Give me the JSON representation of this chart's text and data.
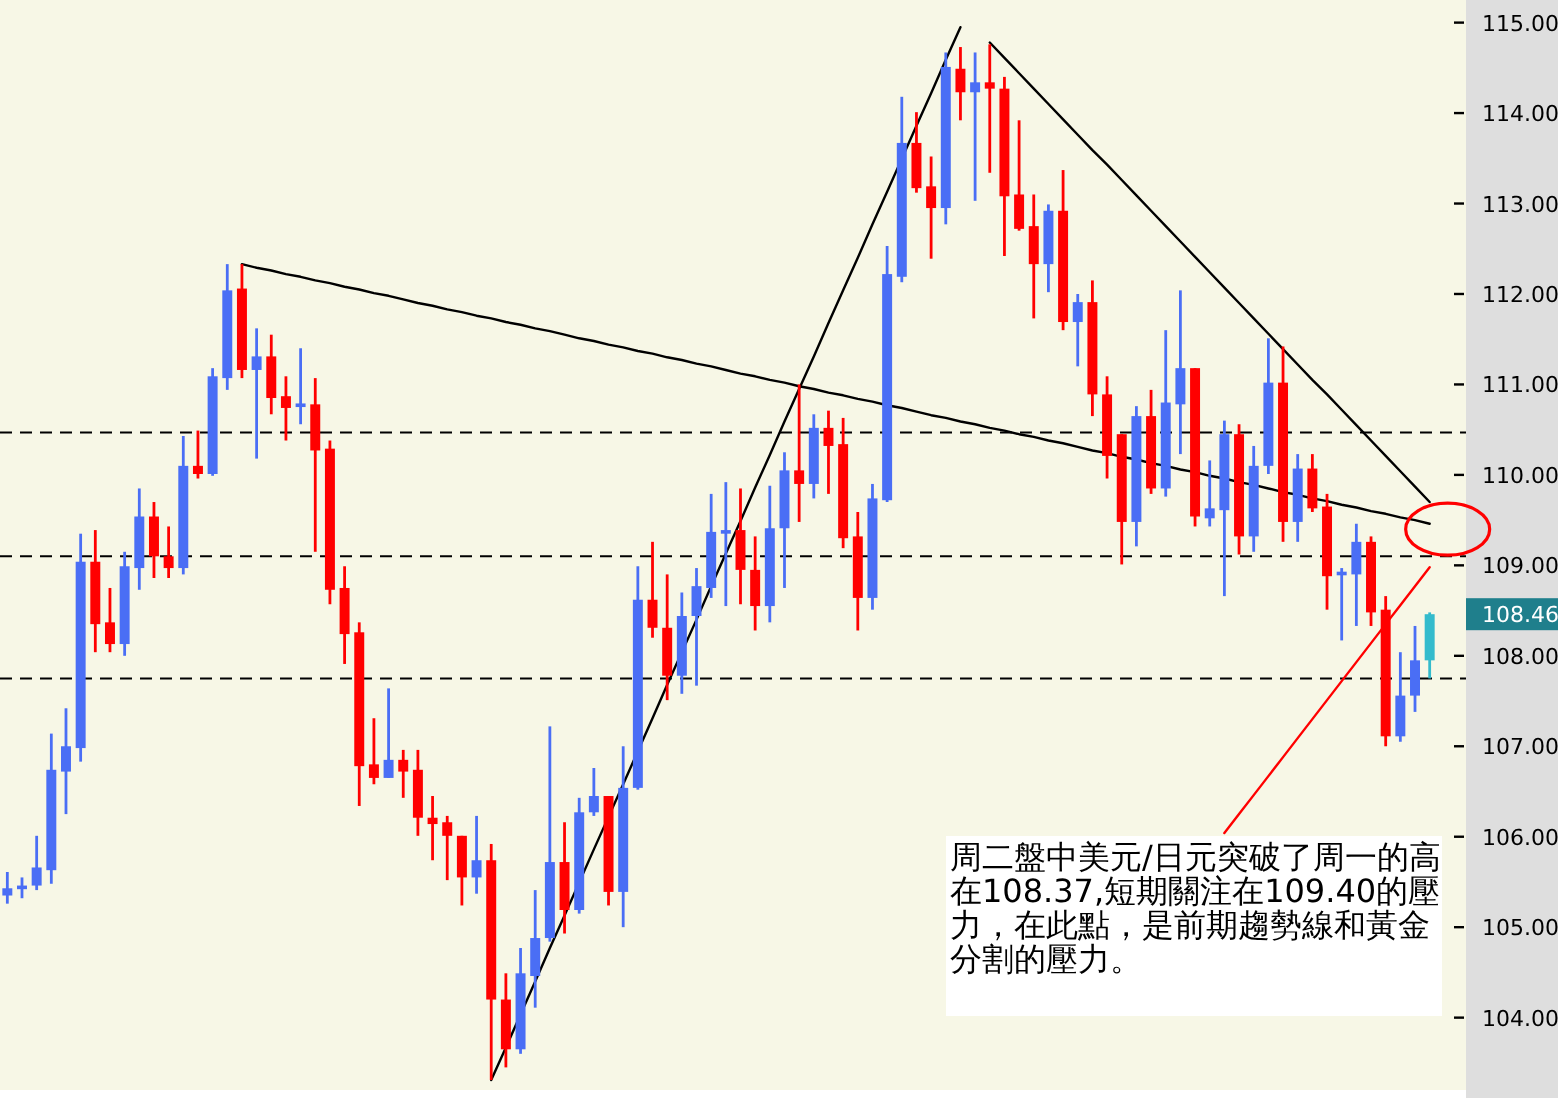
{
  "chart_data": {
    "type": "candlestick",
    "categories": [
      null,
      null,
      null,
      null,
      null,
      null,
      null,
      null,
      null,
      null,
      null,
      null,
      null,
      null,
      null,
      null,
      null,
      null,
      null,
      null,
      null,
      null,
      null,
      null,
      null,
      null,
      null,
      null,
      null,
      null,
      null,
      null,
      null,
      null,
      null,
      null,
      null,
      null,
      null,
      null,
      null,
      null,
      null,
      null,
      null,
      null,
      null,
      null,
      null,
      null,
      null,
      null,
      null,
      null,
      null,
      null,
      null,
      null,
      null,
      null,
      null,
      null,
      null,
      null,
      null,
      null,
      null,
      null,
      null,
      null,
      null,
      null,
      null,
      null,
      null,
      null,
      null,
      null,
      null,
      null,
      null,
      null,
      null,
      null,
      null,
      null,
      null,
      null,
      null,
      null,
      null,
      null,
      null,
      null,
      null,
      null,
      null,
      null
    ],
    "ohlc": [
      [
        105.35,
        105.61,
        105.26,
        105.43
      ],
      [
        105.42,
        105.55,
        105.32,
        105.46
      ],
      [
        105.46,
        106.01,
        105.41,
        105.66
      ],
      [
        105.63,
        107.14,
        105.48,
        106.74
      ],
      [
        106.72,
        107.42,
        106.25,
        107.0
      ],
      [
        106.98,
        109.35,
        106.83,
        109.04
      ],
      [
        109.04,
        109.39,
        108.04,
        108.35
      ],
      [
        108.37,
        108.75,
        108.04,
        108.13
      ],
      [
        108.13,
        109.15,
        108.0,
        108.99
      ],
      [
        108.97,
        109.85,
        108.73,
        109.54
      ],
      [
        109.54,
        109.7,
        108.86,
        109.1
      ],
      [
        109.1,
        109.43,
        108.86,
        108.97
      ],
      [
        108.97,
        110.43,
        108.9,
        110.1
      ],
      [
        110.1,
        110.49,
        109.96,
        110.01
      ],
      [
        110.01,
        111.18,
        109.99,
        111.09
      ],
      [
        111.07,
        112.33,
        110.94,
        112.04
      ],
      [
        112.06,
        112.33,
        111.07,
        111.16
      ],
      [
        111.16,
        111.62,
        110.18,
        111.31
      ],
      [
        111.31,
        111.55,
        110.67,
        110.85
      ],
      [
        110.87,
        111.09,
        110.38,
        110.74
      ],
      [
        110.75,
        111.4,
        110.56,
        110.79
      ],
      [
        110.78,
        111.07,
        109.15,
        110.27
      ],
      [
        110.29,
        110.38,
        108.57,
        108.73
      ],
      [
        108.75,
        108.99,
        107.91,
        108.24
      ],
      [
        108.26,
        108.37,
        106.34,
        106.78
      ],
      [
        106.8,
        107.31,
        106.58,
        106.65
      ],
      [
        106.65,
        107.64,
        106.65,
        106.85
      ],
      [
        106.85,
        106.96,
        106.43,
        106.72
      ],
      [
        106.74,
        106.96,
        106.01,
        106.21
      ],
      [
        106.21,
        106.45,
        105.74,
        106.14
      ],
      [
        106.16,
        106.23,
        105.52,
        106.01
      ],
      [
        106.01,
        106.01,
        105.24,
        105.55
      ],
      [
        105.55,
        106.23,
        105.37,
        105.74
      ],
      [
        105.74,
        105.92,
        103.31,
        104.2
      ],
      [
        104.2,
        104.49,
        103.45,
        103.65
      ],
      [
        103.65,
        104.77,
        103.6,
        104.49
      ],
      [
        104.46,
        105.41,
        104.11,
        104.88
      ],
      [
        104.88,
        107.22,
        104.84,
        105.72
      ],
      [
        105.72,
        106.16,
        104.93,
        105.19
      ],
      [
        105.19,
        106.43,
        105.15,
        106.27
      ],
      [
        106.27,
        106.76,
        106.23,
        106.45
      ],
      [
        106.45,
        106.45,
        105.24,
        105.39
      ],
      [
        105.39,
        107.0,
        105.0,
        106.54
      ],
      [
        106.54,
        108.99,
        106.52,
        108.62
      ],
      [
        108.62,
        109.26,
        108.2,
        108.31
      ],
      [
        108.31,
        108.9,
        107.51,
        107.78
      ],
      [
        107.78,
        108.7,
        107.58,
        108.44
      ],
      [
        108.44,
        108.97,
        107.67,
        108.77
      ],
      [
        108.75,
        109.79,
        108.64,
        109.37
      ],
      [
        109.35,
        109.92,
        108.55,
        109.39
      ],
      [
        109.39,
        109.85,
        108.57,
        108.95
      ],
      [
        108.95,
        109.32,
        108.28,
        108.55
      ],
      [
        108.55,
        109.88,
        108.37,
        109.41
      ],
      [
        109.41,
        110.25,
        108.75,
        110.05
      ],
      [
        110.05,
        111.0,
        109.48,
        109.9
      ],
      [
        109.9,
        110.67,
        109.74,
        110.52
      ],
      [
        110.52,
        110.71,
        109.79,
        110.32
      ],
      [
        110.34,
        110.63,
        109.19,
        109.3
      ],
      [
        109.32,
        109.59,
        108.28,
        108.64
      ],
      [
        108.64,
        109.9,
        108.51,
        109.74
      ],
      [
        109.72,
        112.53,
        109.7,
        112.22
      ],
      [
        112.19,
        114.18,
        112.13,
        113.67
      ],
      [
        113.67,
        114.01,
        113.12,
        113.17
      ],
      [
        113.19,
        113.52,
        112.39,
        112.95
      ],
      [
        112.95,
        114.67,
        112.77,
        114.51
      ],
      [
        114.49,
        114.73,
        113.92,
        114.23
      ],
      [
        114.23,
        114.67,
        113.03,
        114.34
      ],
      [
        114.34,
        114.76,
        113.34,
        114.27
      ],
      [
        114.27,
        114.4,
        112.42,
        113.08
      ],
      [
        113.1,
        113.92,
        112.7,
        112.72
      ],
      [
        112.75,
        113.1,
        111.73,
        112.33
      ],
      [
        112.33,
        112.99,
        112.02,
        112.92
      ],
      [
        112.92,
        113.37,
        111.6,
        111.69
      ],
      [
        111.69,
        112.0,
        111.2,
        111.91
      ],
      [
        111.91,
        112.15,
        110.65,
        110.89
      ],
      [
        110.89,
        111.09,
        109.96,
        110.21
      ],
      [
        110.45,
        110.45,
        109.01,
        109.48
      ],
      [
        109.48,
        110.76,
        109.21,
        110.65
      ],
      [
        110.65,
        110.94,
        109.79,
        109.85
      ],
      [
        109.85,
        111.6,
        109.76,
        110.8
      ],
      [
        110.78,
        112.04,
        110.23,
        111.18
      ],
      [
        111.18,
        111.18,
        109.43,
        109.54
      ],
      [
        109.52,
        110.16,
        109.43,
        109.63
      ],
      [
        109.61,
        110.6,
        108.66,
        110.45
      ],
      [
        110.45,
        110.56,
        109.12,
        109.32
      ],
      [
        109.32,
        110.32,
        109.15,
        110.1
      ],
      [
        110.1,
        111.51,
        110.01,
        111.02
      ],
      [
        111.02,
        111.42,
        109.26,
        109.48
      ],
      [
        109.48,
        110.23,
        109.26,
        110.07
      ],
      [
        110.07,
        110.23,
        109.59,
        109.63
      ],
      [
        109.65,
        109.79,
        108.51,
        108.88
      ],
      [
        108.89,
        108.97,
        108.17,
        108.93
      ],
      [
        108.9,
        109.46,
        108.33,
        109.26
      ],
      [
        109.26,
        109.32,
        108.33,
        108.48
      ],
      [
        108.51,
        108.66,
        107.0,
        107.11
      ],
      [
        107.11,
        108.04,
        107.05,
        107.56
      ],
      [
        107.56,
        108.33,
        107.38,
        107.95
      ],
      [
        107.95,
        108.48,
        107.75,
        108.46
      ]
    ],
    "colors": [
      "#4a6ef5",
      "#4a6ef5",
      "#4a6ef5",
      "#4a6ef5",
      "#4a6ef5",
      "#4a6ef5",
      "#ff0000",
      "#ff0000",
      "#4a6ef5",
      "#4a6ef5",
      "#ff0000",
      "#ff0000",
      "#4a6ef5",
      "#ff0000",
      "#4a6ef5",
      "#4a6ef5",
      "#ff0000",
      "#4a6ef5",
      "#ff0000",
      "#ff0000",
      "#4a6ef5",
      "#ff0000",
      "#ff0000",
      "#ff0000",
      "#ff0000",
      "#ff0000",
      "#4a6ef5",
      "#ff0000",
      "#ff0000",
      "#ff0000",
      "#ff0000",
      "#ff0000",
      "#4a6ef5",
      "#ff0000",
      "#ff0000",
      "#4a6ef5",
      "#4a6ef5",
      "#4a6ef5",
      "#ff0000",
      "#4a6ef5",
      "#4a6ef5",
      "#ff0000",
      "#4a6ef5",
      "#4a6ef5",
      "#ff0000",
      "#ff0000",
      "#4a6ef5",
      "#4a6ef5",
      "#4a6ef5",
      "#4a6ef5",
      "#ff0000",
      "#ff0000",
      "#4a6ef5",
      "#4a6ef5",
      "#ff0000",
      "#4a6ef5",
      "#ff0000",
      "#ff0000",
      "#ff0000",
      "#4a6ef5",
      "#4a6ef5",
      "#4a6ef5",
      "#ff0000",
      "#ff0000",
      "#4a6ef5",
      "#ff0000",
      "#4a6ef5",
      "#ff0000",
      "#ff0000",
      "#ff0000",
      "#ff0000",
      "#4a6ef5",
      "#ff0000",
      "#4a6ef5",
      "#ff0000",
      "#ff0000",
      "#ff0000",
      "#4a6ef5",
      "#ff0000",
      "#4a6ef5",
      "#4a6ef5",
      "#ff0000",
      "#4a6ef5",
      "#4a6ef5",
      "#ff0000",
      "#4a6ef5",
      "#4a6ef5",
      "#ff0000",
      "#4a6ef5",
      "#ff0000",
      "#ff0000",
      "#4a6ef5",
      "#4a6ef5",
      "#ff0000",
      "#ff0000",
      "#4a6ef5",
      "#4a6ef5",
      "#33bbcc"
    ],
    "series": [
      {
        "type": "line",
        "values": [
          null,
          null,
          null,
          null,
          null,
          null,
          null,
          null,
          null,
          null,
          null,
          null,
          null,
          null,
          null,
          null,
          112.33,
          112.29,
          112.26,
          112.22,
          112.19,
          112.15,
          112.12,
          112.08,
          112.05,
          112.01,
          111.98,
          111.94,
          111.9,
          111.87,
          111.83,
          111.8,
          111.76,
          111.73,
          111.69,
          111.66,
          111.62,
          111.59,
          111.55,
          111.51,
          111.48,
          111.44,
          111.41,
          111.37,
          111.34,
          111.3,
          111.27,
          111.23,
          111.2,
          111.16,
          111.12,
          111.09,
          111.05,
          111.02,
          110.98,
          110.95,
          110.91,
          110.88,
          110.84,
          110.81,
          110.77,
          110.74,
          110.7,
          110.66,
          110.63,
          110.59,
          110.56,
          110.52,
          110.49,
          110.45,
          110.42,
          110.38,
          110.35,
          110.31,
          110.27,
          110.24,
          110.2,
          110.17,
          110.13,
          110.1,
          110.06,
          110.03,
          109.99,
          109.96,
          109.92,
          109.89,
          109.85,
          109.81,
          109.78,
          109.74,
          109.71,
          109.67,
          109.64,
          109.6,
          109.57,
          109.53,
          109.5,
          109.46
        ],
        "color": "#000000"
      },
      {
        "type": "line",
        "values": [
          null,
          null,
          null,
          null,
          null,
          null,
          null,
          null,
          null,
          null,
          null,
          null,
          null,
          null,
          null,
          null,
          null,
          null,
          null,
          null,
          null,
          null,
          null,
          null,
          null,
          null,
          null,
          null,
          null,
          null,
          null,
          null,
          null,
          103.31,
          103.67,
          null,
          104.4,
          104.77,
          105.13,
          null,
          105.86,
          null,
          106.58,
          null,
          107.31,
          107.68,
          null,
          108.4,
          108.77,
          109.13,
          109.49,
          109.86,
          110.22,
          110.59,
          110.95,
          111.31,
          111.68,
          112.04,
          112.4,
          112.77,
          113.13,
          null,
          113.86,
          114.22,
          114.59,
          114.95,
          null,
          null,
          null,
          null,
          null,
          null,
          null,
          null,
          null,
          null,
          null,
          null,
          null,
          null,
          null,
          null,
          null,
          null,
          null,
          null,
          null,
          null,
          null,
          null,
          null,
          null,
          null,
          null,
          null,
          null,
          null,
          null
        ],
        "color": "#000000"
      },
      {
        "type": "line",
        "values": [
          null,
          null,
          null,
          null,
          null,
          null,
          null,
          null,
          null,
          null,
          null,
          null,
          null,
          null,
          null,
          null,
          null,
          null,
          null,
          null,
          null,
          null,
          null,
          null,
          null,
          null,
          null,
          null,
          null,
          null,
          null,
          null,
          null,
          null,
          null,
          null,
          null,
          null,
          null,
          null,
          null,
          null,
          null,
          null,
          null,
          null,
          null,
          null,
          null,
          null,
          null,
          null,
          null,
          null,
          null,
          null,
          null,
          null,
          null,
          null,
          null,
          null,
          null,
          null,
          null,
          null,
          null,
          114.78,
          114.61,
          114.44,
          114.27,
          114.1,
          113.93,
          113.76,
          113.59,
          113.43,
          113.26,
          113.09,
          112.92,
          112.75,
          112.58,
          112.41,
          112.24,
          112.07,
          111.9,
          111.73,
          111.56,
          111.39,
          111.22,
          111.05,
          110.89,
          110.72,
          110.55,
          110.38,
          110.21,
          110.04,
          109.87,
          109.7
        ],
        "color": "#000000"
      },
      {
        "type": "line",
        "values": [
          null,
          null,
          null,
          null,
          null,
          null,
          null,
          null,
          null,
          null,
          null,
          null,
          null,
          null,
          null,
          null,
          null,
          null,
          null,
          null,
          null,
          null,
          null,
          null,
          null,
          null,
          null,
          null,
          null,
          null,
          null,
          null,
          null,
          null,
          null,
          null,
          null,
          null,
          null,
          null,
          null,
          null,
          null,
          null,
          null,
          null,
          null,
          null,
          null,
          null,
          null,
          null,
          null,
          null,
          null,
          null,
          null,
          null,
          null,
          null,
          null,
          null,
          null,
          null,
          null,
          null,
          null,
          null,
          null,
          null,
          null,
          null,
          null,
          null,
          null,
          null,
          null,
          null,
          null,
          null,
          null,
          null,
          null,
          106.04,
          106.25,
          106.46,
          106.67,
          106.88,
          107.09,
          107.3,
          107.51,
          107.72,
          107.93,
          108.14,
          108.35,
          108.56,
          108.77,
          108.98
        ],
        "color": "#ff0000"
      }
    ],
    "ref_lines": [
      {
        "axis": "y",
        "value": 110.47,
        "color": "#000000",
        "line_style": "dashed"
      },
      {
        "axis": "y",
        "value": 109.1,
        "color": "#000000",
        "line_style": "dashed"
      },
      {
        "axis": "y",
        "value": 107.75,
        "color": "#000000",
        "line_style": "dashed"
      }
    ],
    "ylim": [
      103.2,
      115.25
    ],
    "yticks": [
      {
        "value": 104,
        "label": "104.00"
      },
      {
        "value": 105,
        "label": "105.00"
      },
      {
        "value": 106,
        "label": "106.00"
      },
      {
        "value": 107,
        "label": "107.00"
      },
      {
        "value": 108,
        "label": "108.00"
      },
      {
        "value": 109,
        "label": "109.00"
      },
      {
        "value": 110,
        "label": "110.00"
      },
      {
        "value": 111,
        "label": "111.00"
      },
      {
        "value": 112,
        "label": "112.00"
      },
      {
        "value": 113,
        "label": "113.00"
      },
      {
        "value": 114,
        "label": "114.00"
      },
      {
        "value": 115,
        "label": "115.00"
      }
    ],
    "tick_labels": "y",
    "grid": false,
    "annotations": [
      "108.46",
      "周二盤中美元/日元突破了周一的高在108.37,短期關注在109.40的壓力，在此點，是前期趨勢線和黃金分割的壓力。"
    ]
  }
}
